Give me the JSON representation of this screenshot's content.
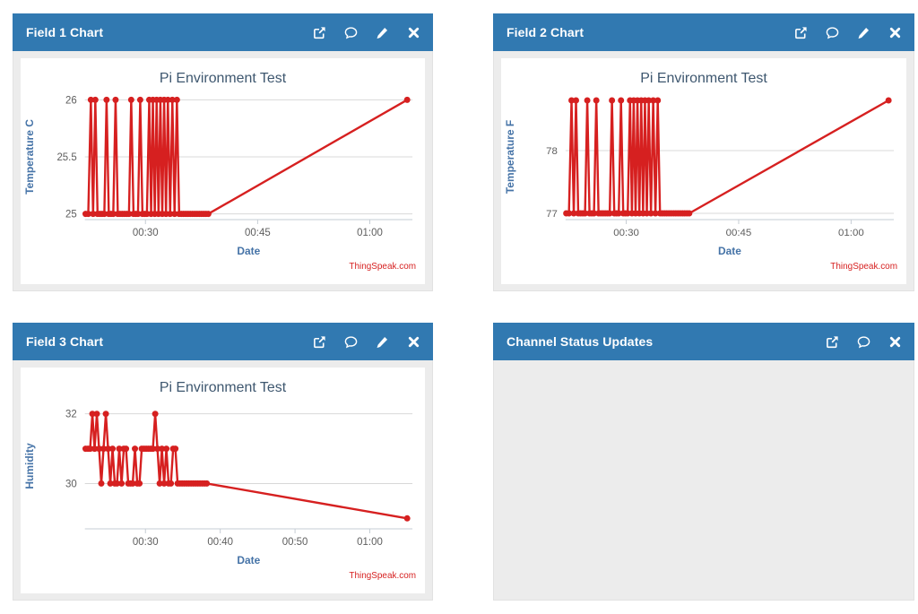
{
  "colors": {
    "header_bg": "#3179b1",
    "header_text": "#ffffff",
    "panel_body_bg": "#ececec",
    "chart_bg": "#ffffff",
    "series_line": "#d62020",
    "chart_title": "#3e576f",
    "axis_title": "#4573a7",
    "tick_label": "#5e5e5e",
    "grid_line": "#d8d8d8",
    "axis_line": "#c6cdd4",
    "credits": "#d62020"
  },
  "panels": [
    {
      "title": "Field 1 Chart",
      "icons": [
        "popout-icon",
        "comment-icon",
        "edit-icon",
        "close-icon"
      ],
      "chart_index": 0
    },
    {
      "title": "Field 2 Chart",
      "icons": [
        "popout-icon",
        "comment-icon",
        "edit-icon",
        "close-icon"
      ],
      "chart_index": 1
    },
    {
      "title": "Field 3 Chart",
      "icons": [
        "popout-icon",
        "comment-icon",
        "edit-icon",
        "close-icon"
      ],
      "chart_index": 2
    },
    {
      "title": "Channel Status Updates",
      "icons": [
        "popout-icon",
        "comment-icon",
        "close-icon"
      ],
      "chart_index": null,
      "body_empty": true
    }
  ],
  "chart_data": [
    {
      "type": "line",
      "title": "Pi Environment Test",
      "xlabel": "Date",
      "ylabel": "Temperature C",
      "credits": "ThingSpeak.com",
      "legend": "off",
      "grid": "on",
      "xlim": [
        21.9,
        65.7
      ],
      "ylim": [
        24.95,
        26.05
      ],
      "xticks": [
        {
          "t": 30,
          "label": "00:30"
        },
        {
          "t": 45,
          "label": "00:45"
        },
        {
          "t": 60,
          "label": "01:00"
        }
      ],
      "yticks": [
        {
          "v": 25,
          "label": "25"
        },
        {
          "v": 25.5,
          "label": "25.5"
        },
        {
          "v": 26,
          "label": "26"
        }
      ],
      "points": [
        [
          22.0,
          25
        ],
        [
          22.35,
          25
        ],
        [
          22.7,
          26
        ],
        [
          23.0,
          25
        ],
        [
          23.3,
          26
        ],
        [
          23.6,
          25
        ],
        [
          23.9,
          25
        ],
        [
          24.2,
          25
        ],
        [
          24.5,
          25
        ],
        [
          24.8,
          26
        ],
        [
          25.1,
          25
        ],
        [
          25.4,
          25
        ],
        [
          25.7,
          25
        ],
        [
          26.0,
          26
        ],
        [
          26.3,
          25
        ],
        [
          26.6,
          25
        ],
        [
          26.9,
          25
        ],
        [
          27.2,
          25
        ],
        [
          27.5,
          25
        ],
        [
          27.8,
          25
        ],
        [
          28.1,
          26
        ],
        [
          28.4,
          25
        ],
        [
          28.7,
          25
        ],
        [
          29.0,
          25
        ],
        [
          29.3,
          26
        ],
        [
          29.6,
          25
        ],
        [
          29.9,
          25
        ],
        [
          30.2,
          25
        ],
        [
          30.5,
          26
        ],
        [
          30.75,
          25
        ],
        [
          31.0,
          26
        ],
        [
          31.25,
          25
        ],
        [
          31.5,
          26
        ],
        [
          31.75,
          25
        ],
        [
          32.0,
          26
        ],
        [
          32.25,
          25
        ],
        [
          32.5,
          26
        ],
        [
          32.75,
          25
        ],
        [
          33.0,
          26
        ],
        [
          33.3,
          25
        ],
        [
          33.6,
          26
        ],
        [
          33.9,
          25
        ],
        [
          34.2,
          26
        ],
        [
          34.5,
          25
        ],
        [
          34.8,
          25
        ],
        [
          35.1,
          25
        ],
        [
          35.4,
          25
        ],
        [
          35.7,
          25
        ],
        [
          36.0,
          25
        ],
        [
          36.3,
          25
        ],
        [
          36.6,
          25
        ],
        [
          36.9,
          25
        ],
        [
          37.2,
          25
        ],
        [
          37.5,
          25
        ],
        [
          37.8,
          25
        ],
        [
          38.1,
          25
        ],
        [
          38.4,
          25
        ],
        [
          65.0,
          26
        ]
      ]
    },
    {
      "type": "line",
      "title": "Pi Environment Test",
      "xlabel": "Date",
      "ylabel": "Temperature F",
      "credits": "ThingSpeak.com",
      "legend": "off",
      "grid": "on",
      "xlim": [
        21.9,
        65.7
      ],
      "ylim": [
        76.9,
        78.9
      ],
      "xticks": [
        {
          "t": 30,
          "label": "00:30"
        },
        {
          "t": 45,
          "label": "00:45"
        },
        {
          "t": 60,
          "label": "01:00"
        }
      ],
      "yticks": [
        {
          "v": 77,
          "label": "77"
        },
        {
          "v": 78,
          "label": "78"
        }
      ],
      "points": [
        [
          22.0,
          77
        ],
        [
          22.35,
          77
        ],
        [
          22.7,
          78.8
        ],
        [
          23.0,
          77
        ],
        [
          23.3,
          78.8
        ],
        [
          23.6,
          77
        ],
        [
          23.9,
          77
        ],
        [
          24.2,
          77
        ],
        [
          24.5,
          77
        ],
        [
          24.8,
          78.8
        ],
        [
          25.1,
          77
        ],
        [
          25.4,
          77
        ],
        [
          25.7,
          77
        ],
        [
          26.0,
          78.8
        ],
        [
          26.3,
          77
        ],
        [
          26.6,
          77
        ],
        [
          26.9,
          77
        ],
        [
          27.2,
          77
        ],
        [
          27.5,
          77
        ],
        [
          27.8,
          77
        ],
        [
          28.1,
          78.8
        ],
        [
          28.4,
          77
        ],
        [
          28.7,
          77
        ],
        [
          29.0,
          77
        ],
        [
          29.3,
          78.8
        ],
        [
          29.6,
          77
        ],
        [
          29.9,
          77
        ],
        [
          30.2,
          77
        ],
        [
          30.5,
          78.8
        ],
        [
          30.75,
          77
        ],
        [
          31.0,
          78.8
        ],
        [
          31.25,
          77
        ],
        [
          31.5,
          78.8
        ],
        [
          31.75,
          77
        ],
        [
          32.0,
          78.8
        ],
        [
          32.25,
          77
        ],
        [
          32.5,
          78.8
        ],
        [
          32.75,
          77
        ],
        [
          33.0,
          78.8
        ],
        [
          33.3,
          77
        ],
        [
          33.6,
          78.8
        ],
        [
          33.9,
          77
        ],
        [
          34.2,
          78.8
        ],
        [
          34.5,
          77
        ],
        [
          34.8,
          77
        ],
        [
          35.1,
          77
        ],
        [
          35.4,
          77
        ],
        [
          35.7,
          77
        ],
        [
          36.0,
          77
        ],
        [
          36.3,
          77
        ],
        [
          36.6,
          77
        ],
        [
          36.9,
          77
        ],
        [
          37.2,
          77
        ],
        [
          37.5,
          77
        ],
        [
          37.8,
          77
        ],
        [
          38.1,
          77
        ],
        [
          38.4,
          77
        ],
        [
          65.0,
          78.8
        ]
      ]
    },
    {
      "type": "line",
      "title": "Pi Environment Test",
      "xlabel": "Date",
      "ylabel": "Humidity",
      "credits": "ThingSpeak.com",
      "legend": "off",
      "grid": "on",
      "xlim": [
        21.9,
        65.7
      ],
      "ylim": [
        28.7,
        32.3
      ],
      "xticks": [
        {
          "t": 30,
          "label": "00:30"
        },
        {
          "t": 40,
          "label": "00:40"
        },
        {
          "t": 50,
          "label": "00:50"
        },
        {
          "t": 60,
          "label": "01:00"
        }
      ],
      "yticks": [
        {
          "v": 30,
          "label": "30"
        },
        {
          "v": 32,
          "label": "32"
        }
      ],
      "points": [
        [
          22.0,
          31
        ],
        [
          22.3,
          31
        ],
        [
          22.6,
          31
        ],
        [
          22.9,
          32
        ],
        [
          23.2,
          31
        ],
        [
          23.5,
          32
        ],
        [
          23.8,
          31
        ],
        [
          24.1,
          30
        ],
        [
          24.4,
          31
        ],
        [
          24.7,
          32
        ],
        [
          25.0,
          31
        ],
        [
          25.3,
          30
        ],
        [
          25.6,
          31
        ],
        [
          25.9,
          30
        ],
        [
          26.2,
          30
        ],
        [
          26.5,
          31
        ],
        [
          26.8,
          30
        ],
        [
          27.1,
          31
        ],
        [
          27.4,
          31
        ],
        [
          27.7,
          30
        ],
        [
          28.0,
          30
        ],
        [
          28.3,
          30
        ],
        [
          28.6,
          31
        ],
        [
          28.9,
          30
        ],
        [
          29.2,
          30
        ],
        [
          29.5,
          31
        ],
        [
          29.8,
          31
        ],
        [
          30.1,
          31
        ],
        [
          30.4,
          31
        ],
        [
          30.7,
          31
        ],
        [
          31.0,
          31
        ],
        [
          31.3,
          32
        ],
        [
          31.6,
          31
        ],
        [
          31.9,
          30
        ],
        [
          32.2,
          31
        ],
        [
          32.5,
          30
        ],
        [
          32.8,
          31
        ],
        [
          33.1,
          30
        ],
        [
          33.4,
          30
        ],
        [
          33.7,
          31
        ],
        [
          34.0,
          31
        ],
        [
          34.3,
          30
        ],
        [
          34.6,
          30
        ],
        [
          34.9,
          30
        ],
        [
          35.2,
          30
        ],
        [
          35.5,
          30
        ],
        [
          35.8,
          30
        ],
        [
          36.1,
          30
        ],
        [
          36.4,
          30
        ],
        [
          36.7,
          30
        ],
        [
          37.0,
          30
        ],
        [
          37.3,
          30
        ],
        [
          37.6,
          30
        ],
        [
          37.9,
          30
        ],
        [
          38.2,
          30
        ],
        [
          65.0,
          29
        ]
      ]
    }
  ]
}
